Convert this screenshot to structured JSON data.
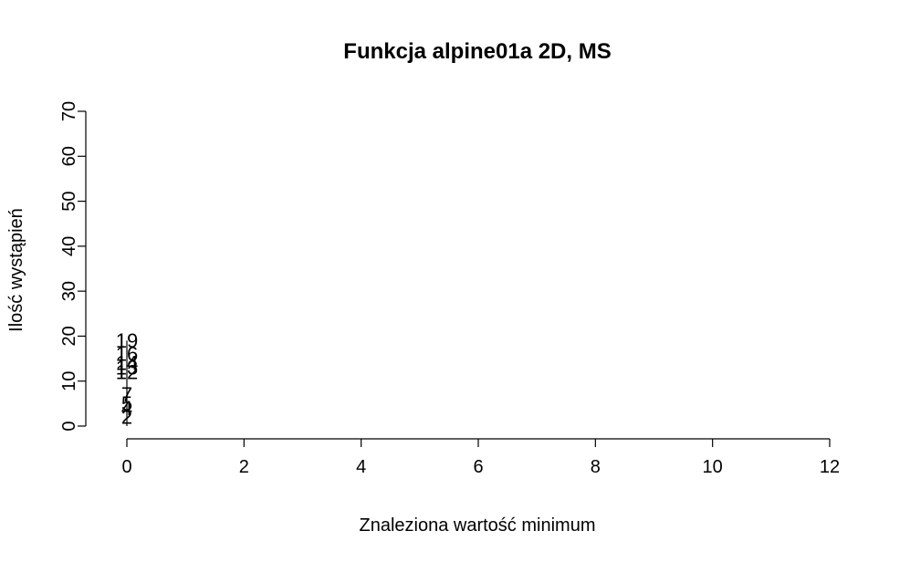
{
  "chart_data": {
    "type": "bar",
    "title": "Funkcja alpine01a 2D, MS",
    "xlabel": "Znaleziona wartość minimum",
    "ylabel": "Ilość wystąpień",
    "xlim": [
      0,
      12
    ],
    "ylim": [
      0,
      70
    ],
    "x_ticks": [
      0,
      2,
      4,
      6,
      8,
      10,
      12
    ],
    "y_ticks": [
      0,
      10,
      20,
      30,
      40,
      50,
      60,
      70
    ],
    "grid": false,
    "points": [
      {
        "x": 0,
        "y": 2,
        "label": "2"
      },
      {
        "x": 0,
        "y": 4,
        "label": "4"
      },
      {
        "x": 0,
        "y": 5,
        "label": "5"
      },
      {
        "x": 0,
        "y": 7,
        "label": "7"
      },
      {
        "x": 0,
        "y": 12,
        "label": "12"
      },
      {
        "x": 0,
        "y": 13,
        "label": "13"
      },
      {
        "x": 0,
        "y": 14,
        "label": "14"
      },
      {
        "x": 0,
        "y": 16,
        "label": "16"
      },
      {
        "x": 0,
        "y": 19,
        "label": "19"
      }
    ]
  }
}
